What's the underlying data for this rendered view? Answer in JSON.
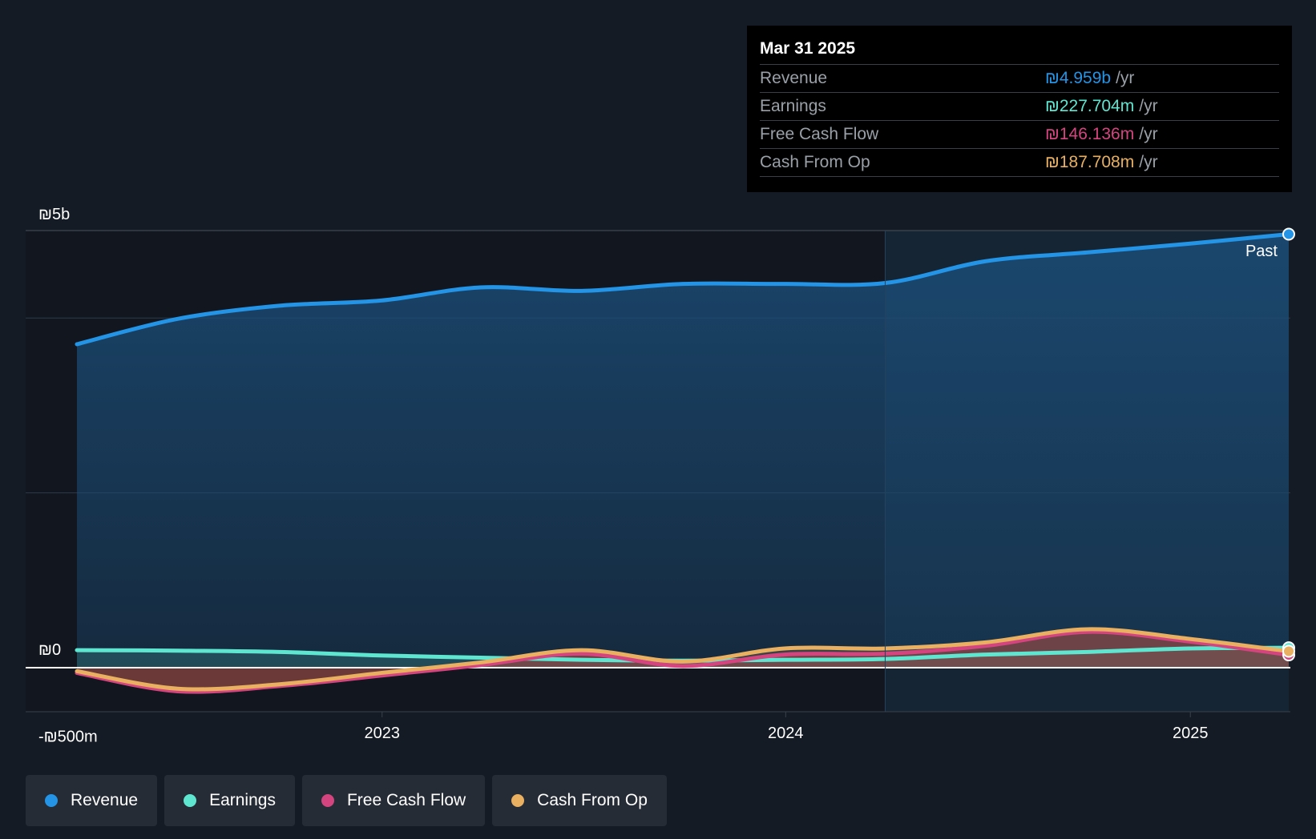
{
  "colors": {
    "revenue": "#2394e6",
    "earnings": "#5ee6d0",
    "free_cash_flow": "#d4457f",
    "cash_from_op": "#e8b060",
    "background": "#151b24"
  },
  "tooltip": {
    "date": "Mar 31 2025",
    "rows": [
      {
        "label": "Revenue",
        "value": "₪4.959b",
        "unit": "/yr"
      },
      {
        "label": "Earnings",
        "value": "₪227.704m",
        "unit": "/yr"
      },
      {
        "label": "Free Cash Flow",
        "value": "₪146.136m",
        "unit": "/yr"
      },
      {
        "label": "Cash From Op",
        "value": "₪187.708m",
        "unit": "/yr"
      }
    ]
  },
  "legend": [
    {
      "label": "Revenue",
      "color_key": "revenue"
    },
    {
      "label": "Earnings",
      "color_key": "earnings"
    },
    {
      "label": "Free Cash Flow",
      "color_key": "free_cash_flow"
    },
    {
      "label": "Cash From Op",
      "color_key": "cash_from_op"
    }
  ],
  "chart_data": {
    "type": "area",
    "title": "",
    "xlabel": "",
    "ylabel": "",
    "y_unit": "ILS millions",
    "ylim": [
      -500,
      5000
    ],
    "y_tick_labels": [
      {
        "value": 5000,
        "label": "₪5b"
      },
      {
        "value": 0,
        "label": "₪0"
      },
      {
        "value": -500,
        "label": "-₪500m"
      }
    ],
    "y_gridlines": [
      5000,
      4000,
      2000,
      0
    ],
    "x_range": [
      "2022-03-31",
      "2025-03-31"
    ],
    "x_tick_labels": [
      {
        "date": "2023-01-01",
        "label": "2023"
      },
      {
        "date": "2024-01-01",
        "label": "2024"
      },
      {
        "date": "2025-01-01",
        "label": "2025"
      }
    ],
    "past_boundary": "2024-03-31",
    "past_label": "Past",
    "x": [
      "2022-03-31",
      "2022-06-30",
      "2022-09-30",
      "2022-12-31",
      "2023-03-31",
      "2023-06-30",
      "2023-09-30",
      "2023-12-31",
      "2024-03-31",
      "2024-06-30",
      "2024-09-30",
      "2024-12-31",
      "2025-03-31"
    ],
    "series": [
      {
        "name": "Revenue",
        "color_key": "revenue",
        "filled": true,
        "values": [
          3700,
          3990,
          4140,
          4200,
          4350,
          4310,
          4390,
          4390,
          4400,
          4650,
          4750,
          4850,
          4959
        ]
      },
      {
        "name": "Earnings",
        "color_key": "earnings",
        "filled": false,
        "values": [
          200,
          195,
          180,
          140,
          115,
          90,
          80,
          90,
          100,
          150,
          180,
          220,
          227.7
        ]
      },
      {
        "name": "Free Cash Flow",
        "color_key": "free_cash_flow",
        "filled": false,
        "values": [
          -60,
          -270,
          -210,
          -90,
          30,
          160,
          20,
          150,
          160,
          250,
          410,
          300,
          146.1
        ]
      },
      {
        "name": "Cash From Op",
        "color_key": "cash_from_op",
        "filled": false,
        "values": [
          -40,
          -240,
          -190,
          -60,
          60,
          200,
          70,
          220,
          220,
          290,
          440,
          330,
          187.7
        ]
      }
    ]
  }
}
